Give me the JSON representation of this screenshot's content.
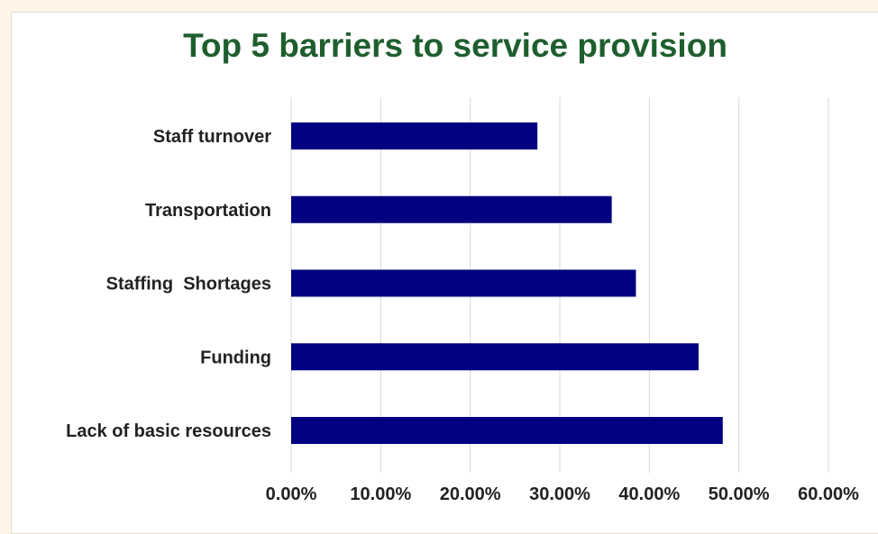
{
  "chart_data": {
    "type": "bar",
    "orientation": "horizontal",
    "title": "Top 5 barriers to service provision",
    "xlabel": "",
    "ylabel": "",
    "categories": [
      "Staff turnover",
      "Transportation",
      "Staffing  Shortages",
      "Funding",
      "Lack of basic resources"
    ],
    "values": [
      0.275,
      0.358,
      0.385,
      0.455,
      0.482
    ],
    "xlim": [
      0,
      0.6
    ],
    "ticks": [
      0,
      0.1,
      0.2,
      0.3,
      0.4,
      0.5,
      0.6
    ],
    "tick_labels": [
      "0.00%",
      "10.00%",
      "20.00%",
      "30.00%",
      "40.00%",
      "50.00%",
      "60.00%"
    ],
    "grid": true,
    "legend": "none",
    "colors": {
      "bar": "#000080",
      "grid": "#d9d9d9",
      "title": "#1e5e2e",
      "label": "#222222"
    }
  }
}
